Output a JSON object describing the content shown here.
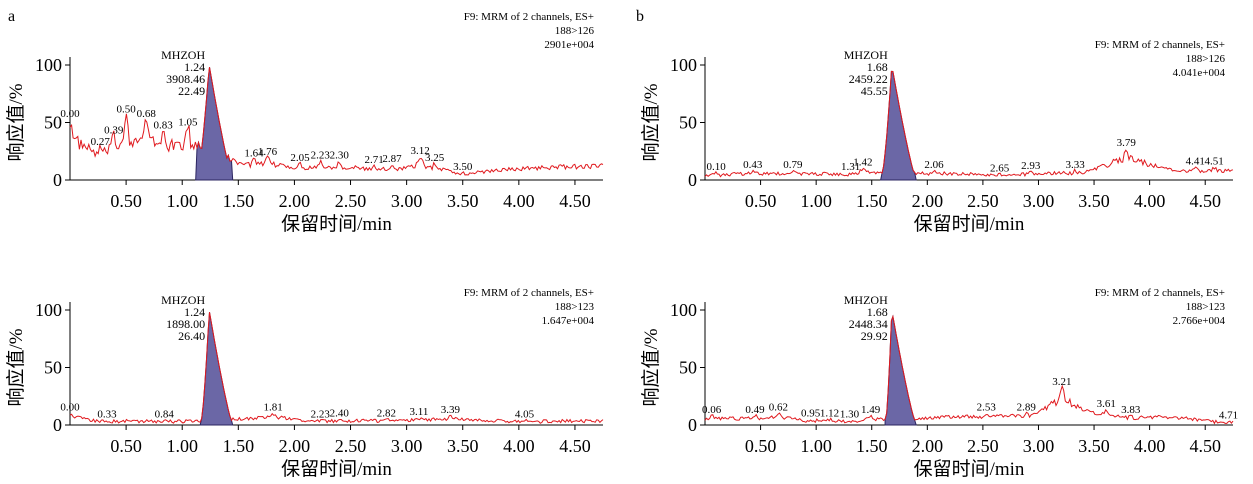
{
  "panels": {
    "a": "a",
    "b": "b"
  },
  "colors": {
    "trace": "#e0191e",
    "peak_fill": "#6b67a6",
    "peak_stroke": "#2b2560",
    "axis": "#000000",
    "watermark": "#d9d9d9"
  },
  "chart_data": [
    {
      "type": "line",
      "panel": "a",
      "header": [
        "F9: MRM of 2 channels, ES+",
        "188>126",
        "2901e+004"
      ],
      "xlabel": "保留时间/min",
      "ylabel": "响应值/%",
      "xlim": [
        0,
        4.75
      ],
      "ylim": [
        0,
        100
      ],
      "xticks": [
        0.5,
        1.0,
        1.5,
        2.0,
        2.5,
        3.0,
        3.5,
        4.0,
        4.5
      ],
      "yticks": [
        0,
        50,
        100
      ],
      "peak": {
        "name": "MHZOH",
        "rt": "1.24",
        "area": "3908.46",
        "height": "22.49",
        "apex": [
          1.24,
          100
        ],
        "start": 1.12,
        "end": 1.45
      },
      "labels": [
        {
          "t": "0.00",
          "x": 0.0,
          "y": 52
        },
        {
          "t": "0.27",
          "x": 0.27,
          "y": 28
        },
        {
          "t": "0.39",
          "x": 0.39,
          "y": 38
        },
        {
          "t": "0.50",
          "x": 0.5,
          "y": 56
        },
        {
          "t": "0.68",
          "x": 0.68,
          "y": 52
        },
        {
          "t": "0.83",
          "x": 0.83,
          "y": 42
        },
        {
          "t": "1.05",
          "x": 1.05,
          "y": 45
        },
        {
          "t": "1.64",
          "x": 1.64,
          "y": 18
        },
        {
          "t": "1.76",
          "x": 1.76,
          "y": 19
        },
        {
          "t": "2.05",
          "x": 2.05,
          "y": 14
        },
        {
          "t": "2.23",
          "x": 2.23,
          "y": 16
        },
        {
          "t": "2.30",
          "x": 2.4,
          "y": 16
        },
        {
          "t": "2.71",
          "x": 2.71,
          "y": 12
        },
        {
          "t": "2.87",
          "x": 2.87,
          "y": 13
        },
        {
          "t": "3.12",
          "x": 3.12,
          "y": 20
        },
        {
          "t": "3.25",
          "x": 3.25,
          "y": 14
        },
        {
          "t": "3.50",
          "x": 3.5,
          "y": 6
        }
      ]
    },
    {
      "type": "line",
      "panel": "b",
      "header": [
        "F9: MRM of 2 channels, ES+",
        "188>126",
        "4.041e+004"
      ],
      "xlabel": "保留时间/min",
      "ylabel": "响应值/%",
      "xlim": [
        0,
        4.75
      ],
      "ylim": [
        0,
        100
      ],
      "xticks": [
        0.5,
        1.0,
        1.5,
        2.0,
        2.5,
        3.0,
        3.5,
        4.0,
        4.5
      ],
      "yticks": [
        0,
        50,
        100
      ],
      "peak": {
        "name": "MHZOH",
        "rt": "1.68",
        "area": "2459.22",
        "height": "45.55",
        "apex": [
          1.68,
          100
        ],
        "start": 1.58,
        "end": 1.9
      },
      "labels": [
        {
          "t": "0.10",
          "x": 0.1,
          "y": 6
        },
        {
          "t": "0.43",
          "x": 0.43,
          "y": 8
        },
        {
          "t": "0.79",
          "x": 0.79,
          "y": 8
        },
        {
          "t": "1.31",
          "x": 1.31,
          "y": 6
        },
        {
          "t": "1.42",
          "x": 1.42,
          "y": 10
        },
        {
          "t": "2.06",
          "x": 2.06,
          "y": 8
        },
        {
          "t": "2.65",
          "x": 2.65,
          "y": 5
        },
        {
          "t": "2.93",
          "x": 2.93,
          "y": 7
        },
        {
          "t": "3.33",
          "x": 3.33,
          "y": 8
        },
        {
          "t": "3.79",
          "x": 3.79,
          "y": 27
        },
        {
          "t": "4.41",
          "x": 4.41,
          "y": 11
        },
        {
          "t": "4.51",
          "x": 4.58,
          "y": 11
        }
      ]
    },
    {
      "type": "line",
      "panel": "a",
      "header": [
        "F9: MRM of 2 channels, ES+",
        "188>123",
        "1.647e+004"
      ],
      "xlabel": "保留时间/min",
      "ylabel": "响应值/%",
      "xlim": [
        0,
        4.75
      ],
      "ylim": [
        0,
        100
      ],
      "xticks": [
        0.5,
        1.0,
        1.5,
        2.0,
        2.5,
        3.0,
        3.5,
        4.0,
        4.5
      ],
      "yticks": [
        0,
        50,
        100
      ],
      "peak": {
        "name": "MHZOH",
        "rt": "1.24",
        "area": "1898.00",
        "height": "26.40",
        "apex": [
          1.24,
          100
        ],
        "start": 1.16,
        "end": 1.45
      },
      "labels": [
        {
          "t": "0.00",
          "x": 0.0,
          "y": 10
        },
        {
          "t": "0.33",
          "x": 0.33,
          "y": 4
        },
        {
          "t": "0.84",
          "x": 0.84,
          "y": 4
        },
        {
          "t": "1.81",
          "x": 1.81,
          "y": 10
        },
        {
          "t": "2.23",
          "x": 2.23,
          "y": 4
        },
        {
          "t": "2.40",
          "x": 2.4,
          "y": 5
        },
        {
          "t": "2.82",
          "x": 2.82,
          "y": 5
        },
        {
          "t": "3.11",
          "x": 3.11,
          "y": 6
        },
        {
          "t": "3.39",
          "x": 3.39,
          "y": 8
        },
        {
          "t": "4.05",
          "x": 4.05,
          "y": 4
        }
      ]
    },
    {
      "type": "line",
      "panel": "b",
      "header": [
        "F9: MRM of 2 channels, ES+",
        "188>123",
        "2.766e+004"
      ],
      "xlabel": "保留时间/min",
      "ylabel": "响应值/%",
      "xlim": [
        0,
        4.75
      ],
      "ylim": [
        0,
        100
      ],
      "xticks": [
        0.5,
        1.0,
        1.5,
        2.0,
        2.5,
        3.0,
        3.5,
        4.0,
        4.5
      ],
      "yticks": [
        0,
        50,
        100
      ],
      "peak": {
        "name": "MHZOH",
        "rt": "1.68",
        "area": "2448.34",
        "height": "29.92",
        "apex": [
          1.68,
          100
        ],
        "start": 1.62,
        "end": 1.9
      },
      "labels": [
        {
          "t": "0.06",
          "x": 0.06,
          "y": 8
        },
        {
          "t": "0.49",
          "x": 0.45,
          "y": 8
        },
        {
          "t": "0.62",
          "x": 0.66,
          "y": 10
        },
        {
          "t": "0.95",
          "x": 0.95,
          "y": 5
        },
        {
          "t": "1.12",
          "x": 1.12,
          "y": 5
        },
        {
          "t": "1.30",
          "x": 1.3,
          "y": 4
        },
        {
          "t": "1.49",
          "x": 1.49,
          "y": 8
        },
        {
          "t": "2.53",
          "x": 2.53,
          "y": 10
        },
        {
          "t": "2.89",
          "x": 2.89,
          "y": 10
        },
        {
          "t": "3.21",
          "x": 3.21,
          "y": 32
        },
        {
          "t": "3.61",
          "x": 3.61,
          "y": 13
        },
        {
          "t": "3.83",
          "x": 3.83,
          "y": 8
        },
        {
          "t": "4.71",
          "x": 4.71,
          "y": 3
        }
      ]
    }
  ]
}
